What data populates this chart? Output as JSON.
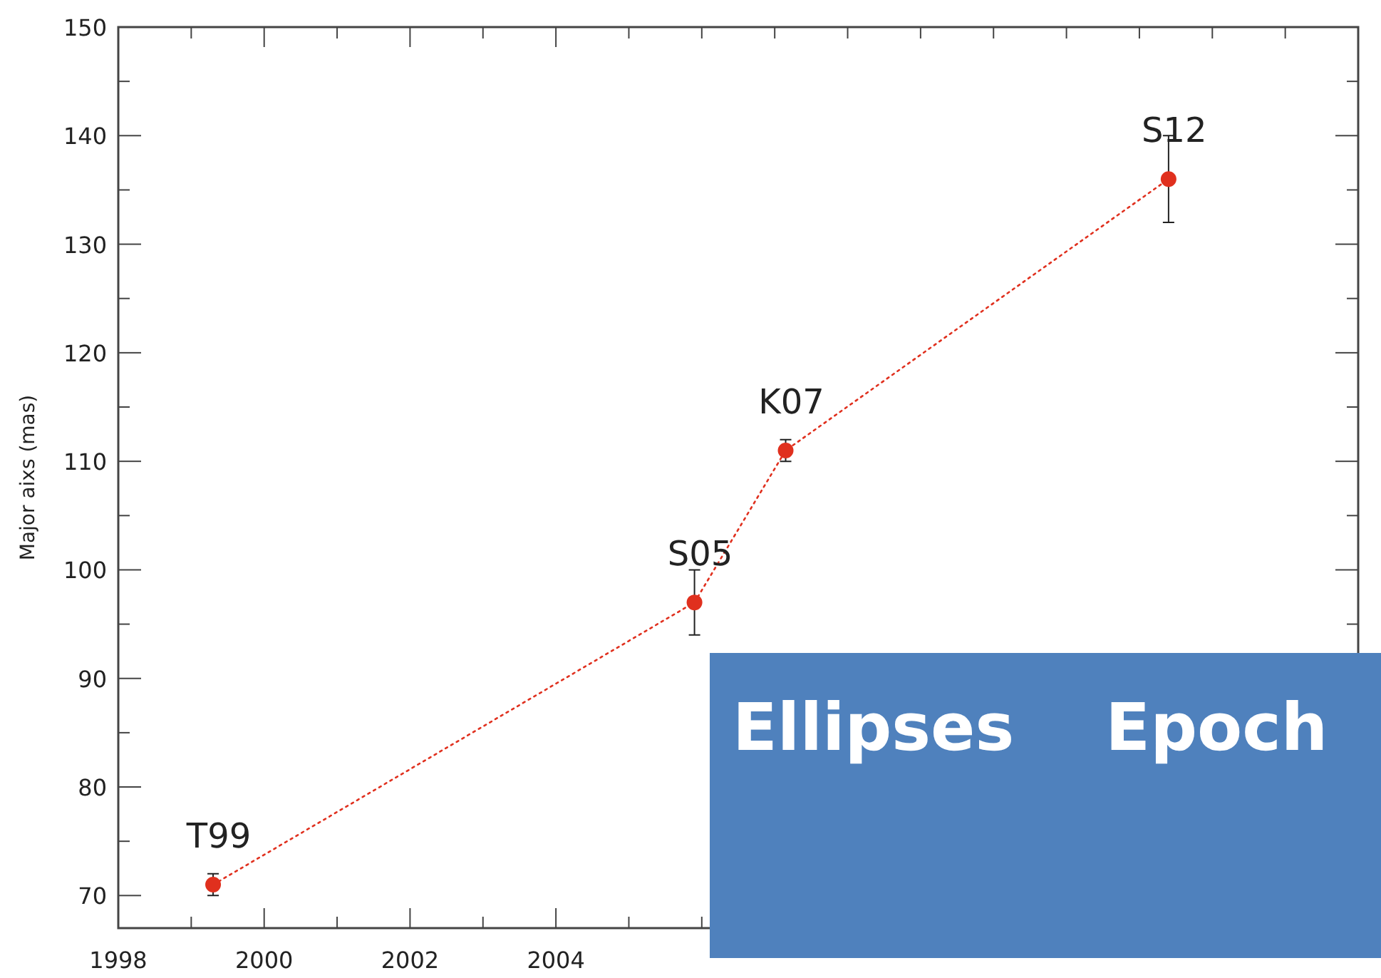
{
  "chart_data": {
    "type": "line",
    "ylabel": "Major aixs (mas)",
    "marker": "circle",
    "line_style": "dotted",
    "grid": false,
    "x": [
      1999.3,
      2005.9,
      2007.15,
      2012.4
    ],
    "series": [
      {
        "color": "#e0301e",
        "values": [
          71,
          97,
          111,
          136
        ],
        "errors": [
          1,
          3,
          1,
          4
        ]
      }
    ],
    "xlim": [
      1998,
      2015
    ],
    "ylim": [
      67,
      150
    ],
    "xticks": [
      1998,
      {
        "value": 1999,
        "label": null
      },
      2000,
      {
        "value": 2001,
        "label": null
      },
      2002,
      {
        "value": 2003,
        "label": null
      },
      2004,
      {
        "value": 2005,
        "label": null
      },
      {
        "value": 2006,
        "label": null
      },
      {
        "value": 2007,
        "label": null
      },
      {
        "value": 2008,
        "label": null
      },
      {
        "value": 2009,
        "label": null
      },
      {
        "value": 2010,
        "label": null
      },
      {
        "value": 2011,
        "label": null
      },
      {
        "value": 2012,
        "label": null
      },
      {
        "value": 2013,
        "label": null
      },
      {
        "value": 2014,
        "label": null
      }
    ],
    "yticks": [
      70,
      {
        "value": 75,
        "label": null
      },
      80,
      {
        "value": 85,
        "label": null
      },
      90,
      {
        "value": 95,
        "label": null
      },
      100,
      {
        "value": 105,
        "label": null
      },
      110,
      {
        "value": 115,
        "label": null
      },
      120,
      {
        "value": 125,
        "label": null
      },
      130,
      {
        "value": 135,
        "label": null
      },
      140,
      {
        "value": 145,
        "label": null
      },
      150
    ],
    "annotations": [
      {
        "text": "T99",
        "x": 1999.3,
        "y": 71
      },
      {
        "text": "S05",
        "x": 2005.9,
        "y": 97
      },
      {
        "text": "K07",
        "x": 2007.15,
        "y": 111
      },
      {
        "text": "S12",
        "x": 2012.4,
        "y": 136
      },
      "Ellipses    Epoch"
    ]
  }
}
